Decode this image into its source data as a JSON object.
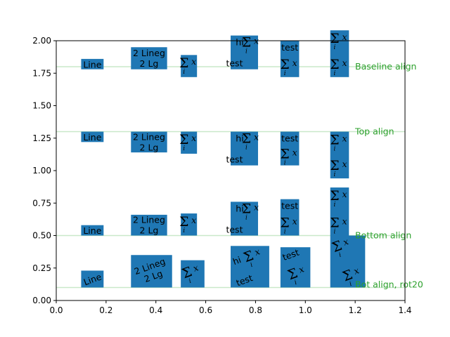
{
  "chart_data": {
    "type": "text-alignment-demo",
    "xlim": [
      0.0,
      1.4
    ],
    "ylim": [
      0.0,
      2.0
    ],
    "xticks": [
      "0.0",
      "0.2",
      "0.4",
      "0.6",
      "0.8",
      "1.0",
      "1.2",
      "1.4"
    ],
    "yticks": [
      "0.00",
      "0.25",
      "0.50",
      "0.75",
      "1.00",
      "1.25",
      "1.50",
      "1.75",
      "2.00"
    ],
    "grid": false,
    "box_color": "#1f77b4",
    "annotation_color": "#2ca02c",
    "guide_color": "#c9e8c9",
    "rows": [
      {
        "label": "Baseline align",
        "y": 1.8,
        "boxes": [
          {
            "x0": 0.1,
            "x1": 0.19,
            "y0": 1.78,
            "y1": 1.86,
            "text": "Line"
          },
          {
            "x0": 0.3,
            "x1": 0.445,
            "y0": 1.78,
            "y1": 1.95,
            "lines": [
              "2 Lineg",
              "2 Lg"
            ]
          },
          {
            "x0": 0.5,
            "x1": 0.565,
            "y0": 1.72,
            "y1": 1.89,
            "math": "Σx_i"
          },
          {
            "x0": 0.7,
            "x1": 0.81,
            "y0": 1.78,
            "y1": 2.04,
            "text": "hi",
            "math": "Σx_i",
            "text2": "test"
          },
          {
            "x0": 0.9,
            "x1": 0.975,
            "y0": 1.72,
            "y1": 2.0,
            "text": "test",
            "math": "Σx_i"
          },
          {
            "x0": 1.1,
            "x1": 1.175,
            "y0": 1.72,
            "y1": 2.08,
            "math": "Σx_i",
            "math2": "Σx_i"
          }
        ]
      },
      {
        "label": "Top align",
        "y": 1.3,
        "boxes": [
          {
            "x0": 0.1,
            "x1": 0.19,
            "y0": 1.22,
            "y1": 1.3,
            "text": "Line"
          },
          {
            "x0": 0.3,
            "x1": 0.445,
            "y0": 1.14,
            "y1": 1.3,
            "lines": [
              "2 Lineg",
              "2 Lg"
            ]
          },
          {
            "x0": 0.5,
            "x1": 0.565,
            "y0": 1.13,
            "y1": 1.3,
            "math": "Σx_i"
          },
          {
            "x0": 0.7,
            "x1": 0.81,
            "y0": 1.04,
            "y1": 1.3,
            "text": "hi",
            "math": "Σx_i",
            "text2": "test"
          },
          {
            "x0": 0.9,
            "x1": 0.975,
            "y0": 1.04,
            "y1": 1.3,
            "text": "test",
            "math": "Σx_i"
          },
          {
            "x0": 1.1,
            "x1": 1.175,
            "y0": 0.94,
            "y1": 1.3,
            "math": "Σx_i",
            "math2": "Σx_i"
          }
        ]
      },
      {
        "label": "Bottom align",
        "y": 0.5,
        "boxes": [
          {
            "x0": 0.1,
            "x1": 0.19,
            "y0": 0.5,
            "y1": 0.58,
            "text": "Line"
          },
          {
            "x0": 0.3,
            "x1": 0.445,
            "y0": 0.5,
            "y1": 0.66,
            "lines": [
              "2 Lineg",
              "2 Lg"
            ]
          },
          {
            "x0": 0.5,
            "x1": 0.565,
            "y0": 0.5,
            "y1": 0.67,
            "math": "Σx_i"
          },
          {
            "x0": 0.7,
            "x1": 0.81,
            "y0": 0.5,
            "y1": 0.76,
            "text": "hi",
            "math": "Σx_i",
            "text2": "test"
          },
          {
            "x0": 0.9,
            "x1": 0.975,
            "y0": 0.5,
            "y1": 0.78,
            "text": "test",
            "math": "Σx_i"
          },
          {
            "x0": 1.1,
            "x1": 1.175,
            "y0": 0.5,
            "y1": 0.87,
            "math": "Σx_i",
            "math2": "Σx_i"
          }
        ]
      },
      {
        "label": "Bot align, rot20",
        "y": 0.1,
        "rotation": 20,
        "boxes": [
          {
            "x0": 0.1,
            "x1": 0.19,
            "y0": 0.1,
            "y1": 0.23,
            "text": "Line"
          },
          {
            "x0": 0.3,
            "x1": 0.465,
            "y0": 0.1,
            "y1": 0.35,
            "lines": [
              "2 Lineg",
              "2 Lg"
            ]
          },
          {
            "x0": 0.5,
            "x1": 0.595,
            "y0": 0.1,
            "y1": 0.31,
            "math": "Σx_i"
          },
          {
            "x0": 0.7,
            "x1": 0.855,
            "y0": 0.1,
            "y1": 0.42,
            "text": "hi",
            "math": "Σx_i",
            "text2": "test"
          },
          {
            "x0": 0.9,
            "x1": 1.02,
            "y0": 0.1,
            "y1": 0.41,
            "text": "test",
            "math": "Σx_i"
          },
          {
            "x0": 1.1,
            "x1": 1.24,
            "y0": 0.1,
            "y1": 0.5,
            "math": "Σx_i",
            "math2": "Σx_i"
          }
        ]
      }
    ]
  }
}
